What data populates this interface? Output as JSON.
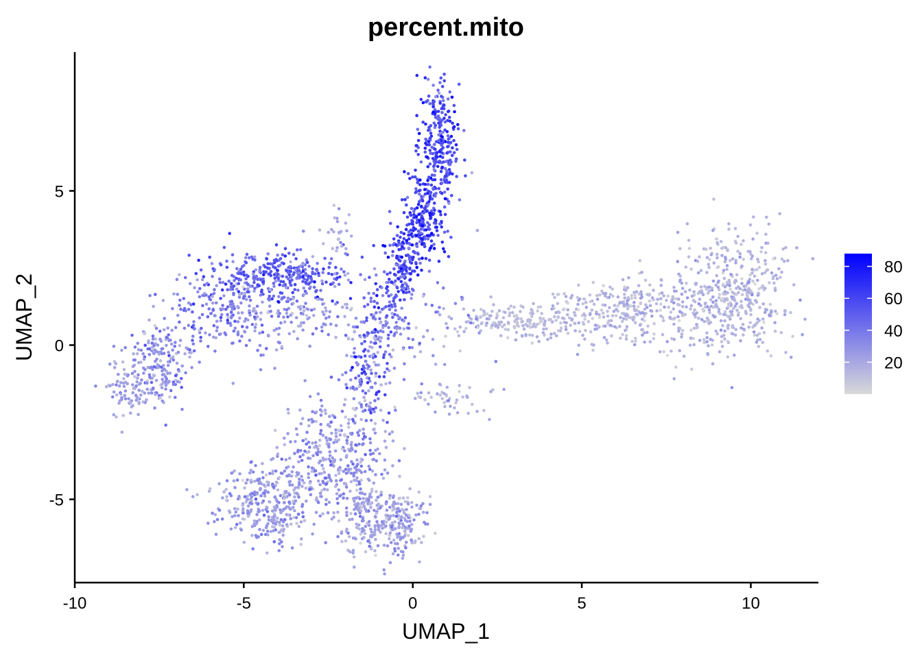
{
  "chart_data": {
    "type": "scatter",
    "title": "percent.mito",
    "xlabel": "UMAP_1",
    "ylabel": "UMAP_2",
    "xlim": [
      -10,
      12
    ],
    "ylim": [
      -7.7,
      9.5
    ],
    "x_ticks": [
      -10,
      -5,
      0,
      5,
      10
    ],
    "y_ticks": [
      -5,
      0,
      5
    ],
    "x_tick_labels": [
      "-10",
      "-5",
      "0",
      "5",
      "10"
    ],
    "y_tick_labels": [
      "-5",
      "0",
      "5"
    ],
    "grid": false,
    "color_scale": {
      "name": "",
      "low_color": "#d9d9d9",
      "high_color": "#0000ff",
      "min": 0,
      "max": 88,
      "ticks": [
        20,
        40,
        60,
        80
      ],
      "tick_labels": [
        "20",
        "40",
        "60",
        "80"
      ],
      "position": "right"
    },
    "clusters": [
      {
        "cx": 0.8,
        "cy": 6.6,
        "sx": 0.28,
        "sy": 1.1,
        "n": 260,
        "value": 58,
        "spread": 14
      },
      {
        "cx": 0.3,
        "cy": 4.2,
        "sx": 0.3,
        "sy": 0.75,
        "n": 220,
        "value": 62,
        "spread": 14
      },
      {
        "cx": -0.3,
        "cy": 2.6,
        "sx": 0.28,
        "sy": 0.55,
        "n": 140,
        "value": 60,
        "spread": 15
      },
      {
        "cx": -0.9,
        "cy": 0.8,
        "sx": 0.35,
        "sy": 0.6,
        "n": 110,
        "value": 42,
        "spread": 14
      },
      {
        "cx": -1.3,
        "cy": -1.2,
        "sx": 0.3,
        "sy": 0.8,
        "n": 90,
        "value": 50,
        "spread": 15
      },
      {
        "cx": -3.9,
        "cy": 2.2,
        "sx": 1.0,
        "sy": 0.45,
        "n": 320,
        "value": 48,
        "spread": 12
      },
      {
        "cx": -5.8,
        "cy": 1.0,
        "sx": 0.9,
        "sy": 0.7,
        "n": 180,
        "value": 36,
        "spread": 12
      },
      {
        "cx": -7.6,
        "cy": -0.7,
        "sx": 0.55,
        "sy": 0.7,
        "n": 190,
        "value": 30,
        "spread": 10
      },
      {
        "cx": -8.3,
        "cy": -1.4,
        "sx": 0.3,
        "sy": 0.4,
        "n": 70,
        "value": 22,
        "spread": 8
      },
      {
        "cx": -3.3,
        "cy": 0.9,
        "sx": 0.9,
        "sy": 0.5,
        "n": 120,
        "value": 26,
        "spread": 10
      },
      {
        "cx": -4.3,
        "cy": -5.1,
        "sx": 0.75,
        "sy": 0.7,
        "n": 330,
        "value": 25,
        "spread": 9
      },
      {
        "cx": -2.2,
        "cy": -3.6,
        "sx": 0.75,
        "sy": 1.0,
        "n": 360,
        "value": 27,
        "spread": 9
      },
      {
        "cx": -1.3,
        "cy": -5.7,
        "sx": 0.35,
        "sy": 0.55,
        "n": 140,
        "value": 22,
        "spread": 8
      },
      {
        "cx": -0.3,
        "cy": -5.8,
        "sx": 0.35,
        "sy": 0.6,
        "n": 150,
        "value": 22,
        "spread": 8
      },
      {
        "cx": 9.5,
        "cy": 1.6,
        "sx": 0.9,
        "sy": 1.0,
        "n": 420,
        "value": 15,
        "spread": 6
      },
      {
        "cx": 6.5,
        "cy": 1.1,
        "sx": 1.3,
        "sy": 0.55,
        "n": 330,
        "value": 14,
        "spread": 6
      },
      {
        "cx": 3.2,
        "cy": 0.8,
        "sx": 1.0,
        "sy": 0.28,
        "n": 170,
        "value": 12,
        "spread": 5
      },
      {
        "cx": 1.0,
        "cy": -1.7,
        "sx": 0.7,
        "sy": 0.25,
        "n": 40,
        "value": 14,
        "spread": 6
      },
      {
        "cx": -2.2,
        "cy": 3.7,
        "sx": 0.2,
        "sy": 0.55,
        "n": 25,
        "value": 18,
        "spread": 6
      },
      {
        "cx": -0.5,
        "cy": 0.3,
        "sx": 1.5,
        "sy": 1.5,
        "n": 120,
        "value": 24,
        "spread": 10
      }
    ]
  }
}
